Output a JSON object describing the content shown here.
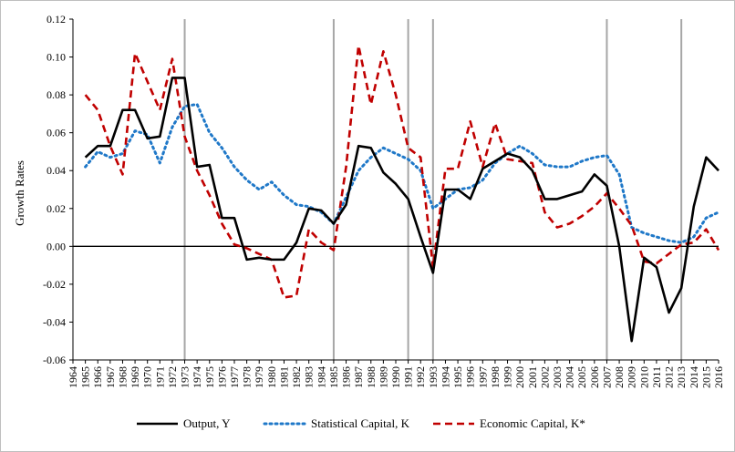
{
  "chart_data": {
    "type": "line",
    "title": "",
    "xlabel": "",
    "ylabel": "Growth Rates",
    "ylim": [
      -0.06,
      0.12
    ],
    "yticks": [
      "-0.06",
      "-0.04",
      "-0.02",
      "0.00",
      "0.02",
      "0.04",
      "0.06",
      "0.08",
      "0.10",
      "0.12"
    ],
    "ytick_values": [
      -0.06,
      -0.04,
      -0.02,
      0.0,
      0.02,
      0.04,
      0.06,
      0.08,
      0.1,
      0.12
    ],
    "categories": [
      "1964",
      "1965",
      "1966",
      "1967",
      "1968",
      "1969",
      "1970",
      "1971",
      "1972",
      "1973",
      "1974",
      "1975",
      "1976",
      "1977",
      "1978",
      "1979",
      "1980",
      "1981",
      "1982",
      "1983",
      "1984",
      "1985",
      "1986",
      "1987",
      "1988",
      "1989",
      "1990",
      "1991",
      "1992",
      "1993",
      "1994",
      "1995",
      "1996",
      "1997",
      "1998",
      "1999",
      "2000",
      "2001",
      "2002",
      "2003",
      "2004",
      "2005",
      "2006",
      "2007",
      "2008",
      "2009",
      "2010",
      "2011",
      "2012",
      "2013",
      "2014",
      "2015",
      "2016"
    ],
    "vertical_markers": [
      "1973",
      "1985",
      "1991",
      "1993",
      "2007",
      "2013"
    ],
    "grid": false,
    "legend_position": "bottom",
    "series": [
      {
        "name": "Output, Y",
        "style": "solid",
        "color": "#000000",
        "x": [
          "1965",
          "1966",
          "1967",
          "1968",
          "1969",
          "1970",
          "1971",
          "1972",
          "1973",
          "1974",
          "1975",
          "1976",
          "1977",
          "1978",
          "1979",
          "1980",
          "1981",
          "1982",
          "1983",
          "1984",
          "1985",
          "1986",
          "1987",
          "1988",
          "1989",
          "1990",
          "1991",
          "1992",
          "1993",
          "1994",
          "1995",
          "1996",
          "1997",
          "1998",
          "1999",
          "2000",
          "2001",
          "2002",
          "2003",
          "2004",
          "2005",
          "2006",
          "2007",
          "2008",
          "2009",
          "2010",
          "2011",
          "2012",
          "2013",
          "2014",
          "2015",
          "2016"
        ],
        "values": [
          0.047,
          0.053,
          0.053,
          0.072,
          0.072,
          0.057,
          0.058,
          0.089,
          0.089,
          0.042,
          0.043,
          0.015,
          0.015,
          -0.007,
          -0.006,
          -0.007,
          -0.007,
          0.002,
          0.02,
          0.019,
          0.012,
          0.022,
          0.053,
          0.052,
          0.039,
          0.033,
          0.025,
          0.005,
          -0.014,
          0.03,
          0.03,
          0.025,
          0.041,
          0.045,
          0.049,
          0.047,
          0.04,
          0.025,
          0.025,
          0.027,
          0.029,
          0.038,
          0.032,
          0.0,
          -0.05,
          -0.006,
          -0.011,
          -0.035,
          -0.022,
          0.021,
          0.047,
          0.04
        ]
      },
      {
        "name": "Statistical Capital, K",
        "style": "dotted",
        "color": "#1f78c8",
        "x": [
          "1965",
          "1966",
          "1967",
          "1968",
          "1969",
          "1970",
          "1971",
          "1972",
          "1973",
          "1974",
          "1975",
          "1976",
          "1977",
          "1978",
          "1979",
          "1980",
          "1981",
          "1982",
          "1983",
          "1984",
          "1985",
          "1986",
          "1987",
          "1988",
          "1989",
          "1990",
          "1991",
          "1992",
          "1993",
          "1994",
          "1995",
          "1996",
          "1997",
          "1998",
          "1999",
          "2000",
          "2001",
          "2002",
          "2003",
          "2004",
          "2005",
          "2006",
          "2007",
          "2008",
          "2009",
          "2010",
          "2011",
          "2012",
          "2013",
          "2014",
          "2015",
          "2016"
        ],
        "values": [
          0.042,
          0.05,
          0.047,
          0.049,
          0.061,
          0.059,
          0.044,
          0.063,
          0.074,
          0.075,
          0.06,
          0.052,
          0.042,
          0.035,
          0.03,
          0.034,
          0.027,
          0.022,
          0.021,
          0.018,
          0.012,
          0.026,
          0.04,
          0.047,
          0.052,
          0.049,
          0.046,
          0.04,
          0.02,
          0.025,
          0.03,
          0.031,
          0.035,
          0.044,
          0.049,
          0.053,
          0.049,
          0.043,
          0.042,
          0.042,
          0.045,
          0.047,
          0.048,
          0.038,
          0.01,
          0.007,
          0.005,
          0.003,
          0.002,
          0.005,
          0.015,
          0.018
        ]
      },
      {
        "name": "Economic Capital, K*",
        "style": "dashed",
        "color": "#c00000",
        "x": [
          "1965",
          "1966",
          "1967",
          "1968",
          "1969",
          "1970",
          "1971",
          "1972",
          "1973",
          "1974",
          "1975",
          "1976",
          "1977",
          "1978",
          "1979",
          "1980",
          "1981",
          "1982",
          "1983",
          "1984",
          "1985",
          "1986",
          "1987",
          "1988",
          "1989",
          "1990",
          "1991",
          "1992",
          "1993",
          "1994",
          "1995",
          "1996",
          "1997",
          "1998",
          "1999",
          "2000",
          "2001",
          "2002",
          "2003",
          "2004",
          "2005",
          "2006",
          "2007",
          "2008",
          "2009",
          "2010",
          "2011",
          "2012",
          "2013",
          "2014",
          "2015",
          "2016"
        ],
        "values": [
          0.08,
          0.072,
          0.053,
          0.038,
          0.102,
          0.087,
          0.072,
          0.099,
          0.058,
          0.04,
          0.027,
          0.012,
          0.001,
          -0.001,
          -0.004,
          -0.007,
          -0.027,
          -0.026,
          0.009,
          0.002,
          -0.002,
          0.042,
          0.106,
          0.075,
          0.103,
          0.08,
          0.052,
          0.047,
          -0.011,
          0.041,
          0.041,
          0.066,
          0.042,
          0.065,
          0.046,
          0.045,
          0.044,
          0.018,
          0.01,
          0.012,
          0.016,
          0.021,
          0.028,
          0.02,
          0.011,
          -0.008,
          -0.009,
          -0.004,
          0.001,
          0.002,
          0.009,
          -0.002
        ]
      }
    ]
  }
}
